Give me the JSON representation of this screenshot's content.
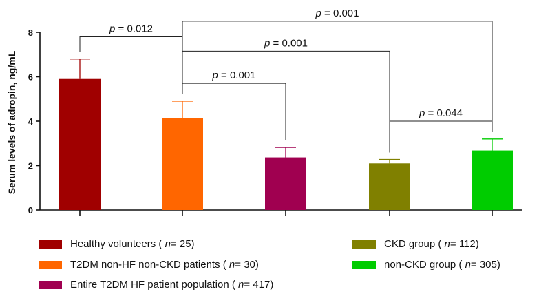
{
  "chart_data": {
    "type": "bar",
    "title": "",
    "xlabel": "",
    "ylabel": "Serum levels of adropin, ng/mL",
    "ylim": [
      0,
      8
    ],
    "yticks": [
      "0",
      "2",
      "4",
      "6",
      "8"
    ],
    "categories": [
      "Healthy volunteers",
      "T2DM non-HF non-CKD patients",
      "Entire T2DM HF patient population",
      "CKD group",
      "non-CKD group"
    ],
    "values": [
      5.9,
      4.15,
      2.37,
      2.1,
      2.68
    ],
    "errors": [
      0.9,
      0.75,
      0.45,
      0.18,
      0.52
    ],
    "colors": [
      "#a00000",
      "#ff6600",
      "#a00050",
      "#808000",
      "#00cc00"
    ],
    "annotations": [
      {
        "from": 0,
        "to": 1,
        "label": "p = 0.012",
        "level": 7.8
      },
      {
        "from": 1,
        "to": 4,
        "label": "p = 0.001",
        "level": 8.5
      },
      {
        "from": 1,
        "to": 3,
        "label": "p = 0.001",
        "level": 7.15
      },
      {
        "from": 1,
        "to": 2,
        "label": "p = 0.001",
        "level": 5.7
      },
      {
        "from": 3,
        "to": 4,
        "label": "p = 0.044",
        "level": 4.0
      }
    ],
    "legend": [
      {
        "label": "Healthy volunteers (",
        "n": "n",
        "tail": " = 25)",
        "color": "#a00000"
      },
      {
        "label": "T2DM non-HF non-CKD patients (",
        "n": "n",
        "tail": " = 30)",
        "color": "#ff6600"
      },
      {
        "label": "Entire T2DM HF patient population (",
        "n": "n",
        "tail": " = 417)",
        "color": "#a00050"
      },
      {
        "label": "CKD group (",
        "n": "n",
        "tail": " = 112)",
        "color": "#808000"
      },
      {
        "label": "non-CKD group (",
        "n": "n",
        "tail": " = 305)",
        "color": "#00cc00"
      }
    ]
  }
}
